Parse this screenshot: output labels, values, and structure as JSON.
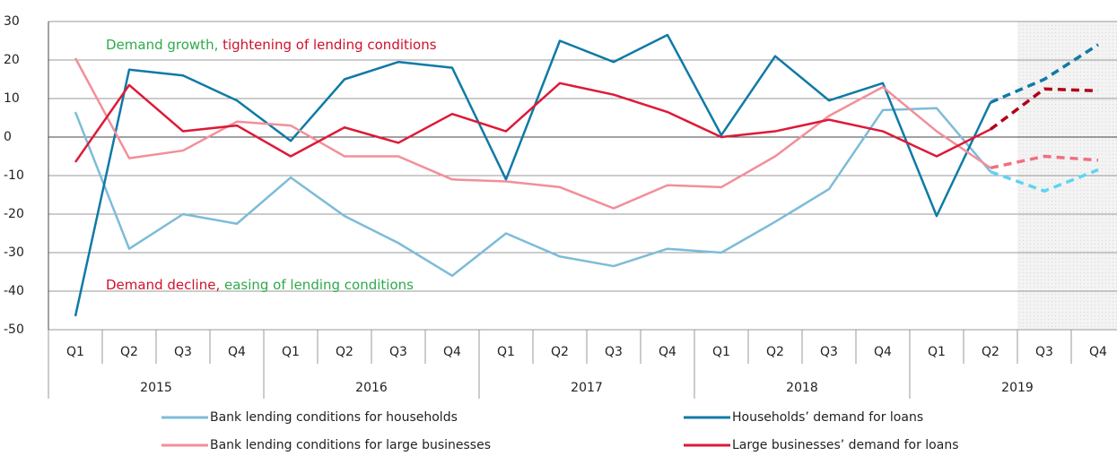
{
  "chart_data": {
    "type": "line",
    "categories": [
      "Q1",
      "Q2",
      "Q3",
      "Q4",
      "Q1",
      "Q2",
      "Q3",
      "Q4",
      "Q1",
      "Q2",
      "Q3",
      "Q4",
      "Q1",
      "Q2",
      "Q3",
      "Q4",
      "Q1",
      "Q2",
      "Q3",
      "Q4"
    ],
    "years": [
      "2015",
      "2016",
      "2017",
      "2018",
      "2019"
    ],
    "ylim": [
      -50,
      30
    ],
    "yticks": [
      -50,
      -40,
      -30,
      -20,
      -10,
      0,
      10,
      20,
      30
    ],
    "grid": true,
    "forecast_from": 17,
    "annotations": [
      {
        "parts": [
          {
            "text": "Demand growth,",
            "color": "#2eaa4a"
          },
          {
            "text": " tightening of lending conditions",
            "color": "#d0102a"
          }
        ]
      },
      {
        "parts": [
          {
            "text": "Demand decline,",
            "color": "#d0102a"
          },
          {
            "text": " easing of lending conditions",
            "color": "#2eaa4a"
          }
        ]
      }
    ],
    "series": [
      {
        "name": "Bank lending conditions for households",
        "color": "#7dbcd8",
        "forecast_color": "#5fd4f2",
        "values": [
          6.5,
          -29,
          -20,
          -22.5,
          -10.5,
          -20.5,
          -27.5,
          -36,
          -25,
          -31,
          -33.5,
          -29,
          -30,
          -22,
          -13.5,
          7,
          7.5,
          -9,
          -14,
          -8.5
        ]
      },
      {
        "name": "Households’ demand for loans",
        "color": "#0f7aa6",
        "forecast_color": "#0f7aa6",
        "values": [
          -46.5,
          17.5,
          16,
          9.5,
          -1,
          15,
          19.5,
          18,
          -11,
          25,
          19.5,
          26.5,
          0.5,
          21,
          9.5,
          14,
          -20.5,
          9,
          15,
          24
        ]
      },
      {
        "name": "Bank lending conditions for large businesses",
        "color": "#f28f9a",
        "forecast_color": "#f07080",
        "values": [
          20.5,
          -5.5,
          -3.5,
          4,
          3,
          -5,
          -5,
          -11,
          -11.5,
          -13,
          -18.5,
          -12.5,
          -13,
          -5,
          5.5,
          13,
          1.5,
          -8,
          -5,
          -6
        ]
      },
      {
        "name": "Large businesses’ demand for loans",
        "color": "#dd1a38",
        "forecast_color": "#b00018",
        "values": [
          -6.5,
          13.5,
          1.5,
          3,
          -5,
          2.5,
          -1.5,
          6,
          1.5,
          14,
          11,
          6.5,
          0,
          1.5,
          4.5,
          1.5,
          -5,
          2,
          12.5,
          12
        ]
      }
    ]
  }
}
